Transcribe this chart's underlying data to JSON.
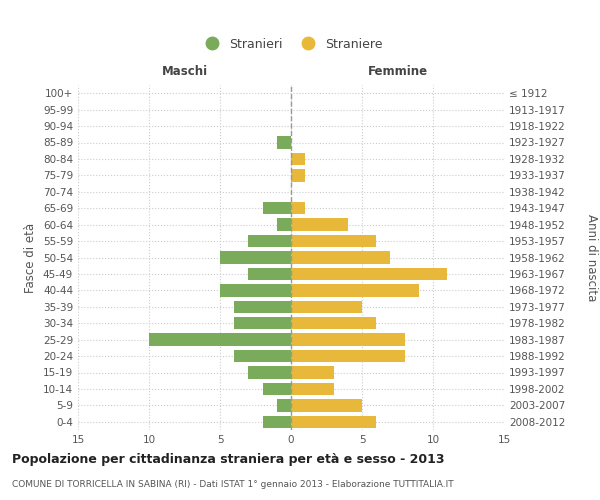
{
  "age_groups": [
    "100+",
    "95-99",
    "90-94",
    "85-89",
    "80-84",
    "75-79",
    "70-74",
    "65-69",
    "60-64",
    "55-59",
    "50-54",
    "45-49",
    "40-44",
    "35-39",
    "30-34",
    "25-29",
    "20-24",
    "15-19",
    "10-14",
    "5-9",
    "0-4"
  ],
  "birth_years": [
    "≤ 1912",
    "1913-1917",
    "1918-1922",
    "1923-1927",
    "1928-1932",
    "1933-1937",
    "1938-1942",
    "1943-1947",
    "1948-1952",
    "1953-1957",
    "1958-1962",
    "1963-1967",
    "1968-1972",
    "1973-1977",
    "1978-1982",
    "1983-1987",
    "1988-1992",
    "1993-1997",
    "1998-2002",
    "2003-2007",
    "2008-2012"
  ],
  "males": [
    0,
    0,
    0,
    1,
    0,
    0,
    0,
    2,
    1,
    3,
    5,
    3,
    5,
    4,
    4,
    10,
    4,
    3,
    2,
    1,
    2
  ],
  "females": [
    0,
    0,
    0,
    0,
    1,
    1,
    0,
    1,
    4,
    6,
    7,
    11,
    9,
    5,
    6,
    8,
    8,
    3,
    3,
    5,
    6
  ],
  "male_color": "#7aab5a",
  "female_color": "#e8b83a",
  "bar_height": 0.75,
  "xlim": 15,
  "title": "Popolazione per cittadinanza straniera per età e sesso - 2013",
  "subtitle": "COMUNE DI TORRICELLA IN SABINA (RI) - Dati ISTAT 1° gennaio 2013 - Elaborazione TUTTITALIA.IT",
  "xlabel_left": "Maschi",
  "xlabel_right": "Femmine",
  "ylabel": "Fasce di età",
  "ylabel_right": "Anni di nascita",
  "legend_male": "Stranieri",
  "legend_female": "Straniere",
  "background_color": "#ffffff",
  "grid_color": "#cccccc",
  "dashed_line_color": "#999999",
  "label_color": "#555555",
  "title_fontsize": 9,
  "subtitle_fontsize": 6.5,
  "tick_fontsize": 7.5,
  "label_fontsize": 8.5
}
